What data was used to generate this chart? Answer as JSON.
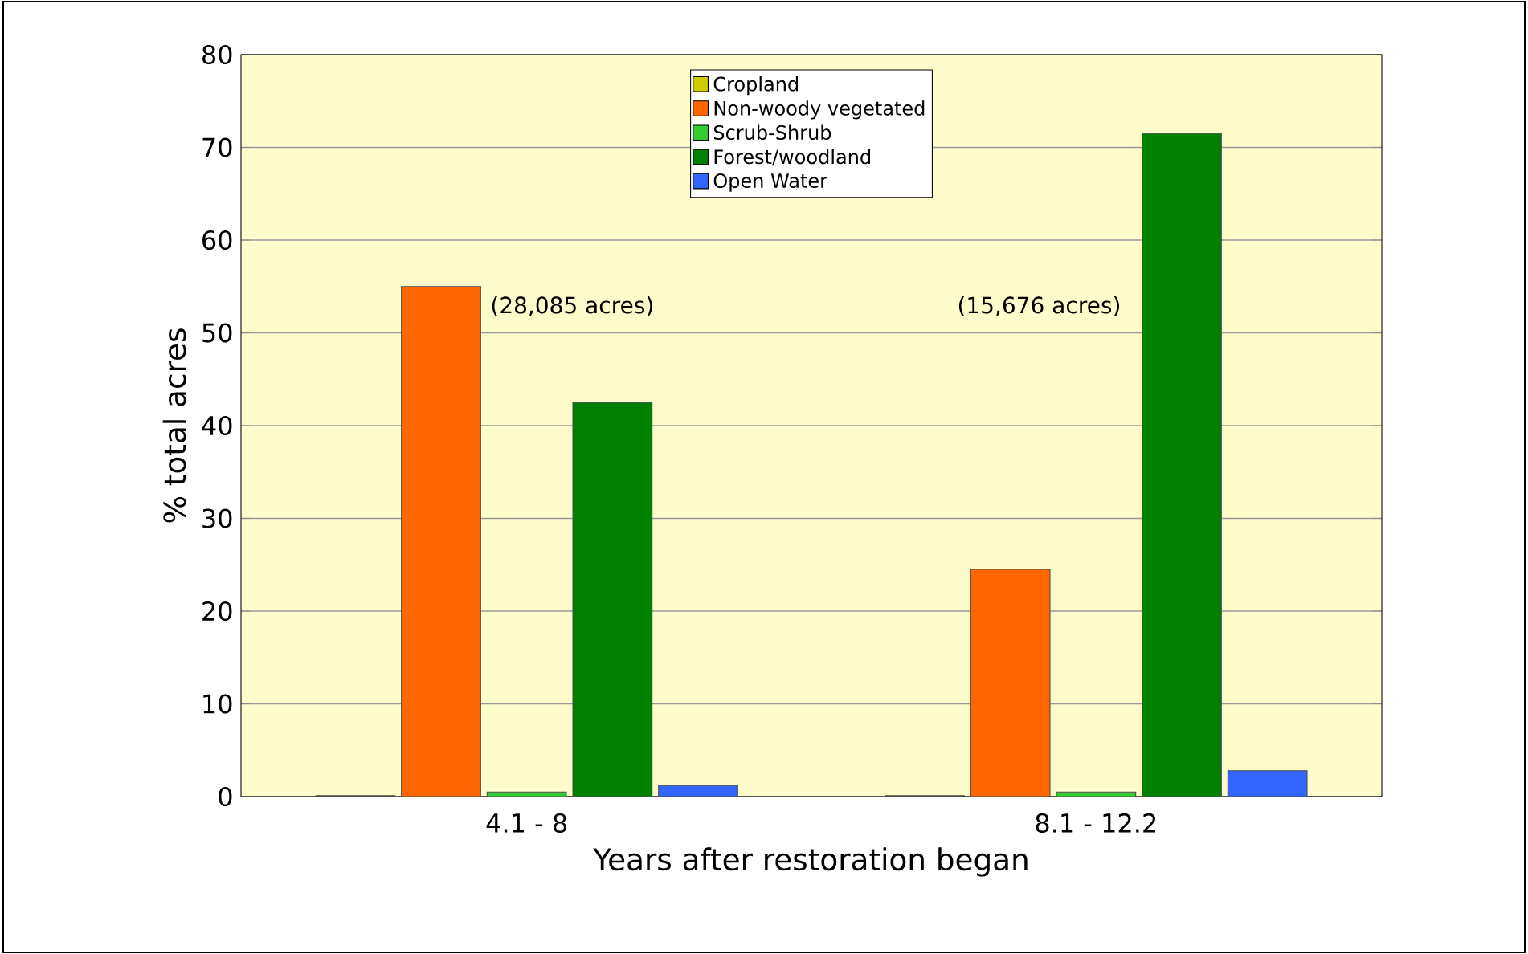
{
  "chart_data": {
    "type": "bar",
    "xlabel": "Years after restoration began",
    "ylabel": "% total acres",
    "categories": [
      "4.1 - 8",
      "8.1 - 12.2"
    ],
    "series": [
      {
        "name": "Cropland",
        "color": "#cccc00",
        "values": [
          0.1,
          0.1
        ]
      },
      {
        "name": "Non-woody vegetated",
        "color": "#ff6600",
        "values": [
          55,
          24.5
        ]
      },
      {
        "name": "Scrub-Shrub",
        "color": "#33cc33",
        "values": [
          0.5,
          0.5
        ]
      },
      {
        "name": "Forest/woodland",
        "color": "#008000",
        "values": [
          42.5,
          71.5
        ]
      },
      {
        "name": "Open Water",
        "color": "#3366ff",
        "values": [
          1.2,
          2.8
        ]
      }
    ],
    "ylim": [
      0,
      80
    ],
    "yticks": [
      0,
      10,
      20,
      30,
      40,
      50,
      60,
      70,
      80
    ],
    "grid": "y",
    "legend": "top",
    "annotations": [
      "(28,085 acres)",
      "(15,676 acres)"
    ]
  }
}
